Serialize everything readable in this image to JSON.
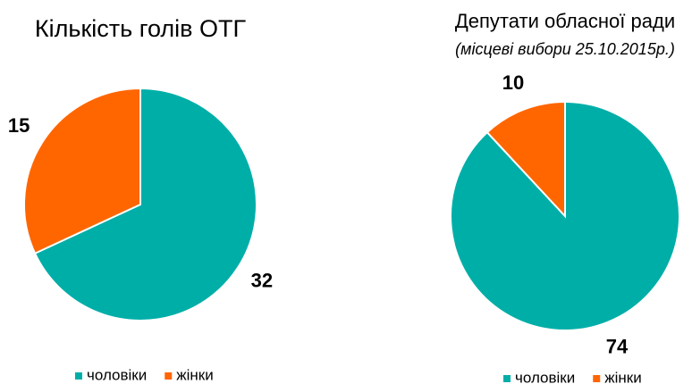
{
  "chart_data": [
    {
      "type": "pie",
      "title": "Кількість голів ОТГ",
      "categories": [
        "чоловіки",
        "жінки"
      ],
      "values": [
        32,
        15
      ],
      "colors": [
        "#00aea8",
        "#ff6600"
      ],
      "legend": "bottom"
    },
    {
      "type": "pie",
      "title": "Депутати обласної ради",
      "subtitle": "(місцеві вибори 25.10.2015р.)",
      "categories": [
        "чоловіки",
        "жінки"
      ],
      "values": [
        74,
        10
      ],
      "colors": [
        "#00aea8",
        "#ff6600"
      ],
      "legend": "bottom"
    }
  ]
}
